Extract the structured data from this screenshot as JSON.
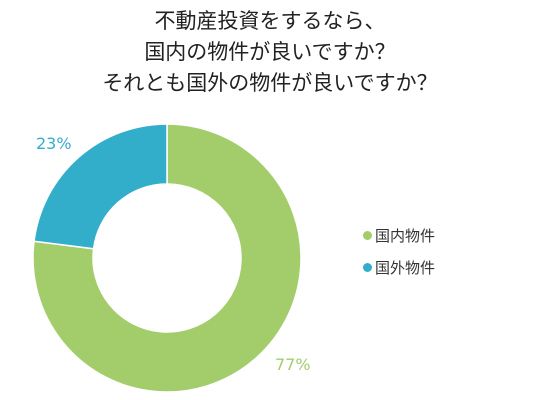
{
  "chart_data": {
    "type": "pie",
    "title_lines": [
      "不動産投資をするなら、",
      "国内の物件が良いですか？",
      "それとも国外の物件が良いですか？"
    ],
    "categories": [
      "国内物件",
      "国外物件"
    ],
    "values": [
      77,
      23
    ],
    "value_labels": [
      "77%",
      "23%"
    ],
    "colors": [
      "#a3cd6a",
      "#33aeca"
    ],
    "legend_position": "right"
  }
}
